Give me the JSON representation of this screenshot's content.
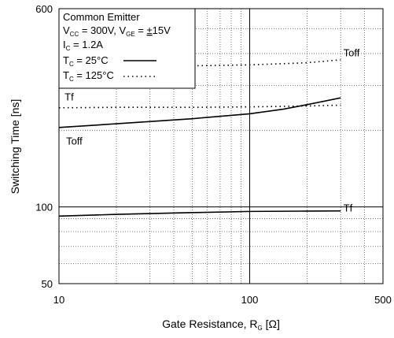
{
  "chart_data": {
    "type": "line",
    "xscale": "log",
    "yscale": "log",
    "xlim": [
      10,
      500
    ],
    "ylim": [
      50,
      600
    ],
    "grid": true,
    "xlabel": "Gate Resistance, R",
    "xlabel_sub": "G",
    "xlabel_unit": "[Ω]",
    "ylabel": "Switching Time [ns]",
    "x_ticks": [
      {
        "value": 10,
        "label": "10"
      },
      {
        "value": 100,
        "label": "100"
      },
      {
        "value": 500,
        "label": "500"
      }
    ],
    "y_ticks": [
      {
        "value": 50,
        "label": "50"
      },
      {
        "value": 100,
        "label": "100"
      },
      {
        "value": 600,
        "label": "600"
      }
    ],
    "legend": {
      "position": "top-left",
      "title": "Common Emitter",
      "line2": {
        "a": "V",
        "a_sub": "CC",
        "b": " = 300V, V",
        "b_sub": "GE",
        "c": " = ",
        "pm": "±",
        "d": "15V"
      },
      "line3": {
        "a": "I",
        "a_sub": "C",
        "b": " = 1.2A"
      },
      "line4": {
        "a": "T",
        "a_sub": "C",
        "b": " =   25°C"
      },
      "line5": {
        "a": "T",
        "a_sub": "C",
        "b": " = 125°C"
      }
    },
    "series": [
      {
        "label": "Toff",
        "temp": "25°C",
        "style": "solid",
        "x": [
          10,
          20,
          50,
          100,
          150,
          200,
          300
        ],
        "y": [
          205,
          212,
          222,
          232,
          242,
          252,
          268
        ]
      },
      {
        "label": "Toff",
        "temp": "125°C",
        "style": "dotted",
        "x": [
          10,
          20,
          50,
          100,
          200,
          300
        ],
        "y": [
          355,
          357,
          358,
          361,
          368,
          378
        ]
      },
      {
        "label": "Tf",
        "temp": "25°C",
        "style": "solid",
        "x": [
          10,
          20,
          50,
          100,
          200,
          300
        ],
        "y": [
          92,
          93.5,
          95,
          96,
          96.3,
          96.5
        ]
      },
      {
        "label": "Tf",
        "temp": "125°C",
        "style": "dotted",
        "x": [
          10,
          20,
          50,
          100,
          200,
          300
        ],
        "y": [
          245,
          246,
          246,
          247,
          249,
          251
        ]
      }
    ],
    "annotations": [
      {
        "text": "Toff",
        "x": 310,
        "y": 390
      },
      {
        "text": "Tf",
        "x": 10.7,
        "y": 262
      },
      {
        "text": "Toff",
        "x": 10.9,
        "y": 176
      },
      {
        "text": "Tf",
        "x": 310,
        "y": 96
      }
    ]
  }
}
